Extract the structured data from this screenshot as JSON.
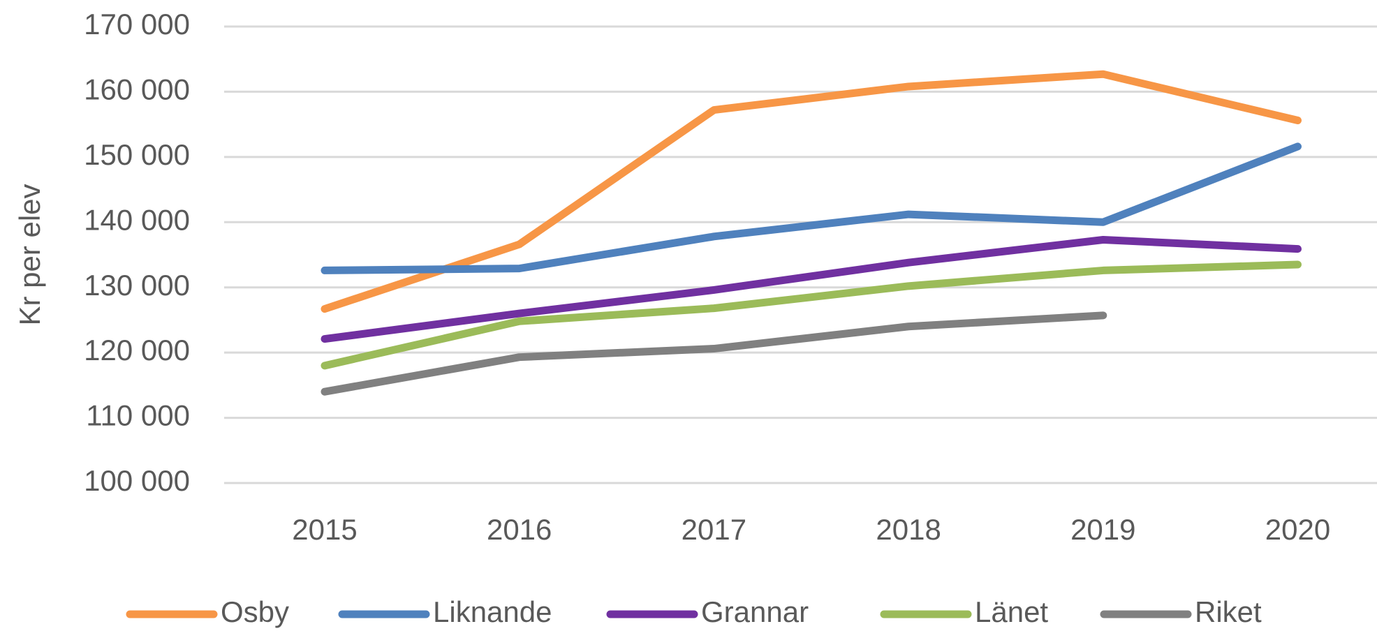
{
  "chart_data": {
    "type": "line",
    "y_label": "Kr per elev",
    "categories": [
      "2015",
      "2016",
      "2017",
      "2018",
      "2019",
      "2020"
    ],
    "series": [
      {
        "name": "Osby",
        "color": "#f79646",
        "values": [
          126700,
          136600,
          157200,
          160800,
          162700,
          155600
        ]
      },
      {
        "name": "Liknande",
        "color": "#4f81bd",
        "values": [
          132600,
          132900,
          137800,
          141200,
          140000,
          151600
        ]
      },
      {
        "name": "Grannar",
        "color": "#7030a0",
        "values": [
          122100,
          126000,
          129600,
          133800,
          137300,
          135900
        ]
      },
      {
        "name": "Länet",
        "color": "#9bbb59",
        "values": [
          118000,
          124800,
          126800,
          130200,
          132600,
          133500
        ]
      },
      {
        "name": "Riket",
        "color": "#808080",
        "values": [
          114000,
          119300,
          120600,
          124000,
          125700,
          null
        ]
      }
    ],
    "ylim": [
      100000,
      170000
    ],
    "yticks": [
      {
        "value": 100000,
        "label": "100 000"
      },
      {
        "value": 110000,
        "label": "110 000"
      },
      {
        "value": 120000,
        "label": "120 000"
      },
      {
        "value": 130000,
        "label": "130 000"
      },
      {
        "value": 140000,
        "label": "140 000"
      },
      {
        "value": 150000,
        "label": "150 000"
      },
      {
        "value": 160000,
        "label": "160 000"
      },
      {
        "value": 170000,
        "label": "170 000"
      }
    ],
    "grid": true,
    "legend": "bottom"
  }
}
